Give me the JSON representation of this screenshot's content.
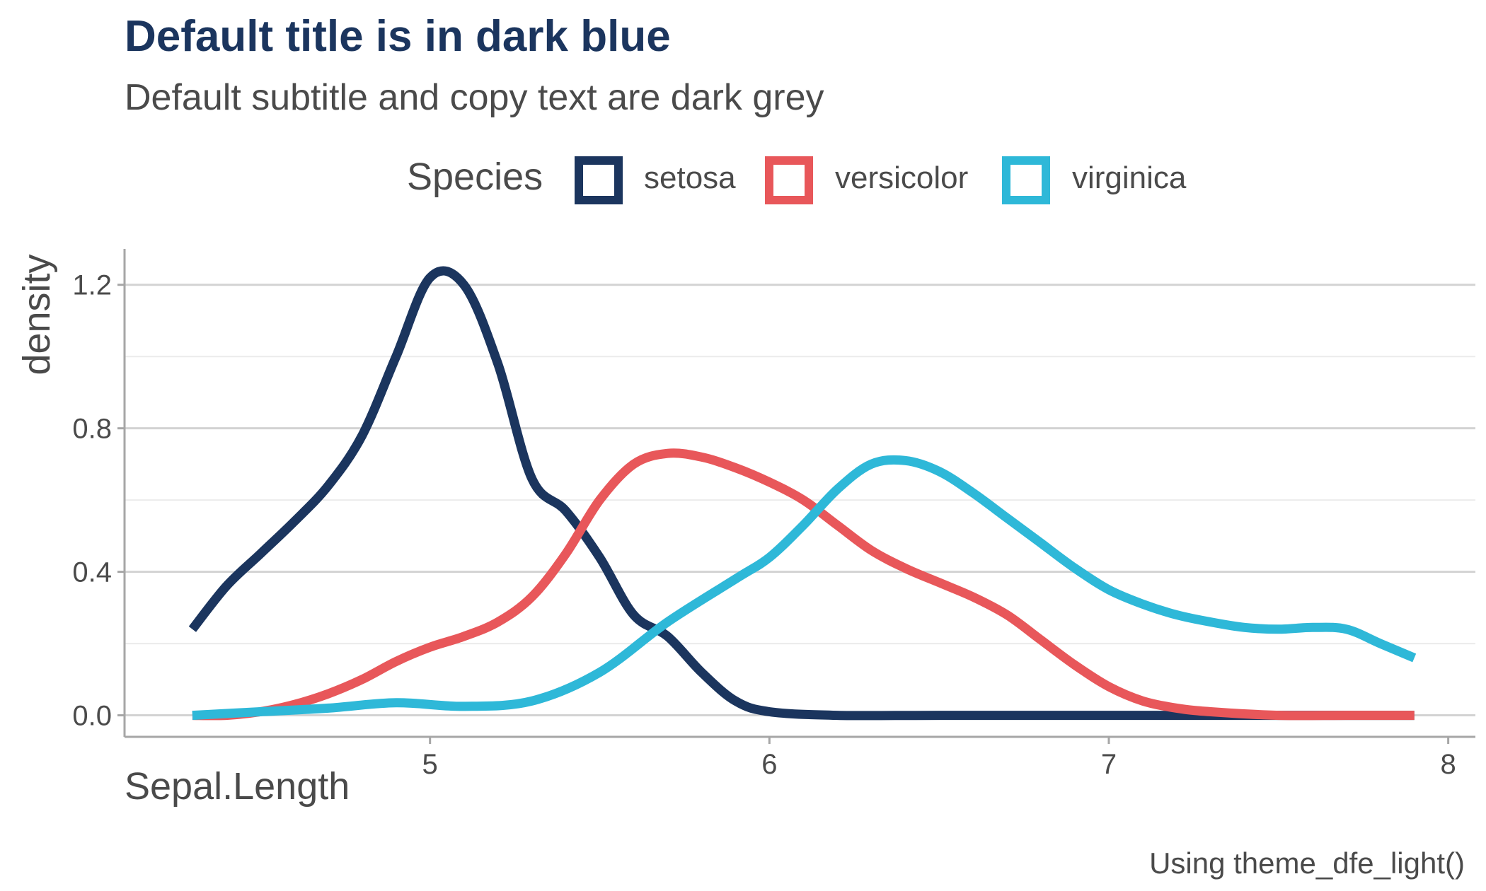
{
  "colors": {
    "title": "#1b355e",
    "text": "#4a4a4a",
    "axis_line": "#a6a6a6",
    "grid_major": "#d3d3d3",
    "grid_minor": "#ebebeb",
    "background": "#ffffff"
  },
  "chart_data": {
    "type": "line",
    "title": "Default title is in dark blue",
    "subtitle": "Default subtitle and copy text are dark grey",
    "caption": "Using theme_dfe_light()",
    "xlabel": "Sepal.Length",
    "ylabel": "density",
    "xlim": [
      4.1,
      8.08
    ],
    "ylim": [
      -0.06,
      1.3
    ],
    "x_ticks": [
      5,
      6,
      7,
      8
    ],
    "x_tick_labels": [
      "5",
      "6",
      "7",
      "8"
    ],
    "y_ticks": [
      0.0,
      0.4,
      0.8,
      1.2
    ],
    "y_tick_labels": [
      "0.0",
      "0.4",
      "0.8",
      "1.2"
    ],
    "y_minor_ticks": [
      0.2,
      0.6,
      1.0
    ],
    "grid": "horizontal",
    "legend": {
      "title": "Species",
      "position": "top"
    },
    "series": [
      {
        "name": "setosa",
        "color": "#1b355e",
        "x": [
          4.3,
          4.4,
          4.5,
          4.6,
          4.7,
          4.8,
          4.9,
          5.0,
          5.1,
          5.2,
          5.3,
          5.4,
          5.5,
          5.6,
          5.7,
          5.8,
          5.9,
          6.0,
          6.2,
          6.5,
          7.0,
          7.5,
          7.9
        ],
        "y": [
          0.24,
          0.36,
          0.45,
          0.54,
          0.64,
          0.78,
          1.0,
          1.22,
          1.2,
          0.98,
          0.66,
          0.57,
          0.44,
          0.28,
          0.22,
          0.12,
          0.04,
          0.01,
          0.0,
          0.0,
          0.0,
          0.0,
          0.0
        ]
      },
      {
        "name": "versicolor",
        "color": "#e8575a",
        "x": [
          4.3,
          4.4,
          4.5,
          4.6,
          4.7,
          4.8,
          4.9,
          5.0,
          5.1,
          5.2,
          5.3,
          5.4,
          5.5,
          5.6,
          5.7,
          5.8,
          5.9,
          6.0,
          6.1,
          6.2,
          6.3,
          6.4,
          6.5,
          6.6,
          6.7,
          6.8,
          6.9,
          7.0,
          7.1,
          7.2,
          7.3,
          7.5,
          7.7,
          7.9
        ],
        "y": [
          0.0,
          0.0,
          0.01,
          0.03,
          0.06,
          0.1,
          0.15,
          0.19,
          0.22,
          0.26,
          0.33,
          0.45,
          0.6,
          0.7,
          0.73,
          0.72,
          0.69,
          0.65,
          0.6,
          0.53,
          0.46,
          0.41,
          0.37,
          0.33,
          0.28,
          0.21,
          0.14,
          0.08,
          0.04,
          0.02,
          0.01,
          0.0,
          0.0,
          0.0
        ]
      },
      {
        "name": "virginica",
        "color": "#2eb8d8",
        "x": [
          4.3,
          4.5,
          4.7,
          4.9,
          5.1,
          5.3,
          5.5,
          5.7,
          5.9,
          6.0,
          6.1,
          6.2,
          6.3,
          6.4,
          6.5,
          6.6,
          6.7,
          6.8,
          6.9,
          7.0,
          7.1,
          7.2,
          7.3,
          7.4,
          7.5,
          7.6,
          7.7,
          7.8,
          7.9
        ],
        "y": [
          0.0,
          0.01,
          0.02,
          0.035,
          0.025,
          0.04,
          0.12,
          0.26,
          0.38,
          0.44,
          0.53,
          0.63,
          0.7,
          0.71,
          0.68,
          0.62,
          0.55,
          0.48,
          0.41,
          0.35,
          0.31,
          0.28,
          0.26,
          0.245,
          0.24,
          0.245,
          0.24,
          0.2,
          0.16
        ]
      }
    ]
  }
}
